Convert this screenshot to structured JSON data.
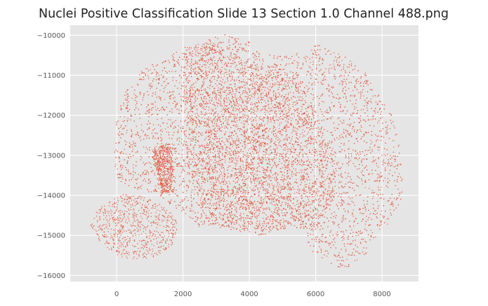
{
  "chart_data": {
    "type": "scatter",
    "title": "Nuclei Positive Classification Slide  13 Section 1.0 Channel 488.png",
    "xlabel": "",
    "ylabel": "",
    "xlim": [
      -1400,
      9100
    ],
    "ylim": [
      -16150,
      -9750
    ],
    "x_ticks": [
      0,
      2000,
      4000,
      6000,
      8000
    ],
    "x_tick_labels": [
      "0",
      "2000",
      "4000",
      "6000",
      "8000"
    ],
    "y_ticks": [
      -10000,
      -11000,
      -12000,
      -13000,
      -14000,
      -15000,
      -16000
    ],
    "y_tick_labels": [
      "−10000",
      "−11000",
      "−12000",
      "−13000",
      "−14000",
      "−15000",
      "−16000"
    ],
    "grid": true,
    "legend": "none",
    "colors": {
      "marker": "#e2553a",
      "plot_background": "#e5e5e5",
      "grid": "#ffffff"
    },
    "series": [
      {
        "values_description_omitted": true,
        "regions": [
          {
            "outline": [
              [
                -850,
                -14800
              ],
              [
                -650,
                -14400
              ],
              [
                -200,
                -14100
              ],
              [
                200,
                -13950
              ],
              [
                700,
                -14000
              ],
              [
                1300,
                -14200
              ],
              [
                1750,
                -14500
              ],
              [
                1850,
                -14950
              ],
              [
                1600,
                -15300
              ],
              [
                1050,
                -15550
              ],
              [
                500,
                -15600
              ],
              [
                0,
                -15500
              ],
              [
                -500,
                -15150
              ]
            ],
            "count": 700
          },
          {
            "outline": [
              [
                0,
                -12000
              ],
              [
                300,
                -11300
              ],
              [
                700,
                -10900
              ],
              [
                1300,
                -10600
              ],
              [
                2000,
                -10300
              ],
              [
                2700,
                -10100
              ],
              [
                3300,
                -9950
              ],
              [
                4000,
                -10100
              ],
              [
                4300,
                -10450
              ],
              [
                5000,
                -10500
              ],
              [
                5600,
                -10350
              ],
              [
                6000,
                -10200
              ],
              [
                6600,
                -10400
              ],
              [
                7300,
                -10700
              ],
              [
                7800,
                -11300
              ],
              [
                8300,
                -12000
              ],
              [
                8550,
                -12900
              ],
              [
                8650,
                -13700
              ],
              [
                8500,
                -14300
              ],
              [
                8000,
                -14900
              ],
              [
                7500,
                -15450
              ],
              [
                6900,
                -15850
              ],
              [
                6400,
                -15800
              ],
              [
                5900,
                -15400
              ],
              [
                5600,
                -14900
              ],
              [
                5300,
                -14750
              ],
              [
                4800,
                -14900
              ],
              [
                4300,
                -15000
              ],
              [
                3700,
                -14900
              ],
              [
                3000,
                -14800
              ],
              [
                2500,
                -14800
              ],
              [
                2050,
                -14500
              ],
              [
                1200,
                -13950
              ],
              [
                450,
                -13800
              ],
              [
                0,
                -13600
              ],
              [
                -100,
                -13000
              ],
              [
                -50,
                -12500
              ]
            ],
            "count": 6500
          },
          {
            "outline": [
              [
                2000,
                -10300
              ],
              [
                2700,
                -10150
              ],
              [
                3400,
                -10400
              ],
              [
                4200,
                -10700
              ],
              [
                4900,
                -10800
              ],
              [
                5500,
                -11200
              ],
              [
                6100,
                -12000
              ],
              [
                6500,
                -13000
              ],
              [
                6600,
                -14000
              ],
              [
                6100,
                -14700
              ],
              [
                5300,
                -14800
              ],
              [
                4500,
                -14900
              ],
              [
                3700,
                -14850
              ],
              [
                2800,
                -14700
              ],
              [
                2400,
                -14200
              ],
              [
                2100,
                -13200
              ],
              [
                2100,
                -12000
              ],
              [
                2000,
                -11000
              ]
            ],
            "count": 3000
          },
          {
            "outline": [
              [
                1050,
                -12800
              ],
              [
                1600,
                -12700
              ],
              [
                1700,
                -13200
              ],
              [
                1650,
                -13900
              ],
              [
                1350,
                -13950
              ],
              [
                1200,
                -13400
              ],
              [
                1050,
                -13000
              ]
            ],
            "count": 500
          }
        ]
      }
    ]
  }
}
